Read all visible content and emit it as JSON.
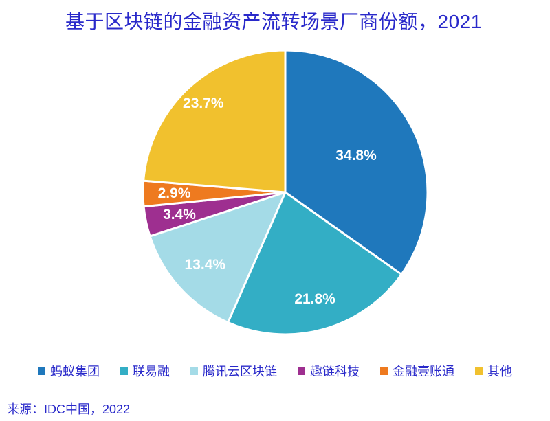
{
  "page": {
    "title": "基于区块链的金融资产流转场景厂商份额，2021",
    "source": "来源：IDC中国，2022",
    "text_color": "#2929ca",
    "background": "#ffffff"
  },
  "chart_data": {
    "type": "pie",
    "title": "基于区块链的金融资产流转场景厂商份额，2021",
    "source": "来源：IDC中国，2022",
    "start_angle_deg": 0,
    "direction": "clockwise",
    "slice_stroke": "#ffffff",
    "legend_position": "bottom",
    "label_color": "#ffffff",
    "slices": [
      {
        "label": "蚂蚁集团",
        "value": 34.8,
        "display": "34.8%",
        "color": "#1f78bc",
        "label_r": 0.56
      },
      {
        "label": "联易融",
        "value": 21.8,
        "display": "21.8%",
        "color": "#33aec5",
        "label_r": 0.78
      },
      {
        "label": "腾讯云区块链",
        "value": 13.4,
        "display": "13.4%",
        "color": "#a4dbe7",
        "label_r": 0.76
      },
      {
        "label": "趣链科技",
        "value": 3.4,
        "display": "3.4%",
        "color": "#9e2f90",
        "label_r": 0.76
      },
      {
        "label": "金融壹账通",
        "value": 2.9,
        "display": "2.9%",
        "color": "#ee7a1f",
        "label_r": 0.78
      },
      {
        "label": "其他",
        "value": 23.7,
        "display": "23.7%",
        "color": "#f1c12e",
        "label_r": 0.85
      }
    ]
  }
}
